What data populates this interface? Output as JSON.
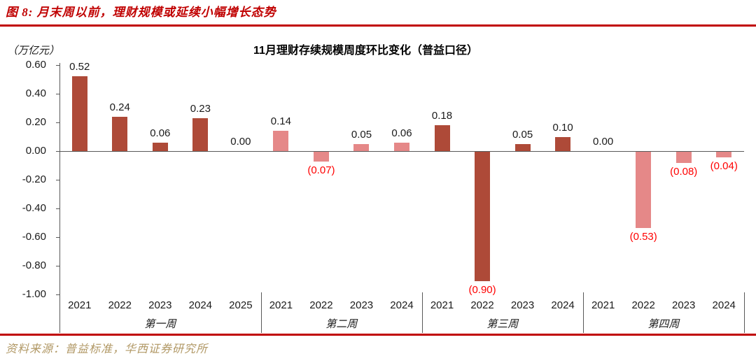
{
  "figure": {
    "title": "图 8:  月末周以前，理财规模或延续小幅增长态势",
    "source": "资料来源：普益标准，华西证券研究所"
  },
  "colors": {
    "accent_red": "#C00000",
    "dark_bar": "#AE4A38",
    "light_bar": "#E58888",
    "negative_label": "#FF0000",
    "source_text": "#B19865",
    "axis": "#595959"
  },
  "chart_data": {
    "type": "bar",
    "title": "11月理财存续规模周度环比变化（普益口径）",
    "ylabel_unit": "（万亿元）",
    "ylim": [
      -1.0,
      0.6
    ],
    "yticks": [
      0.6,
      0.4,
      0.2,
      0.0,
      -0.2,
      -0.4,
      -0.6,
      -0.8,
      -1.0
    ],
    "ytick_labels": [
      "0.60",
      "0.40",
      "0.20",
      "0.00",
      "-0.20",
      "-0.40",
      "-0.60",
      "-0.80",
      "-1.00"
    ],
    "grid": false,
    "legend": "none",
    "negative_label_format": "parentheses",
    "groups": [
      {
        "label": "第一周",
        "bar_color": "#AE4A38",
        "categories": [
          "2021",
          "2022",
          "2023",
          "2024",
          "2025"
        ],
        "values": [
          0.52,
          0.24,
          0.06,
          0.23,
          0.0
        ],
        "value_labels": [
          "0.52",
          "0.24",
          "0.06",
          "0.23",
          "0.00"
        ]
      },
      {
        "label": "第二周",
        "bar_color": "#E58888",
        "categories": [
          "2021",
          "2022",
          "2023",
          "2024"
        ],
        "values": [
          0.14,
          -0.07,
          0.05,
          0.06
        ],
        "value_labels": [
          "0.14",
          "(0.07)",
          "0.05",
          "0.06"
        ]
      },
      {
        "label": "第三周",
        "bar_color": "#AE4A38",
        "categories": [
          "2021",
          "2022",
          "2023",
          "2024"
        ],
        "values": [
          0.18,
          -0.9,
          0.05,
          0.1
        ],
        "value_labels": [
          "0.18",
          "(0.90)",
          "0.05",
          "0.10"
        ]
      },
      {
        "label": "第四周",
        "bar_color": "#E58888",
        "categories": [
          "2021",
          "2022",
          "2023",
          "2024"
        ],
        "values": [
          0.0,
          -0.53,
          -0.08,
          -0.04
        ],
        "value_labels": [
          "0.00",
          "(0.53)",
          "(0.08)",
          "(0.04)"
        ]
      }
    ]
  }
}
